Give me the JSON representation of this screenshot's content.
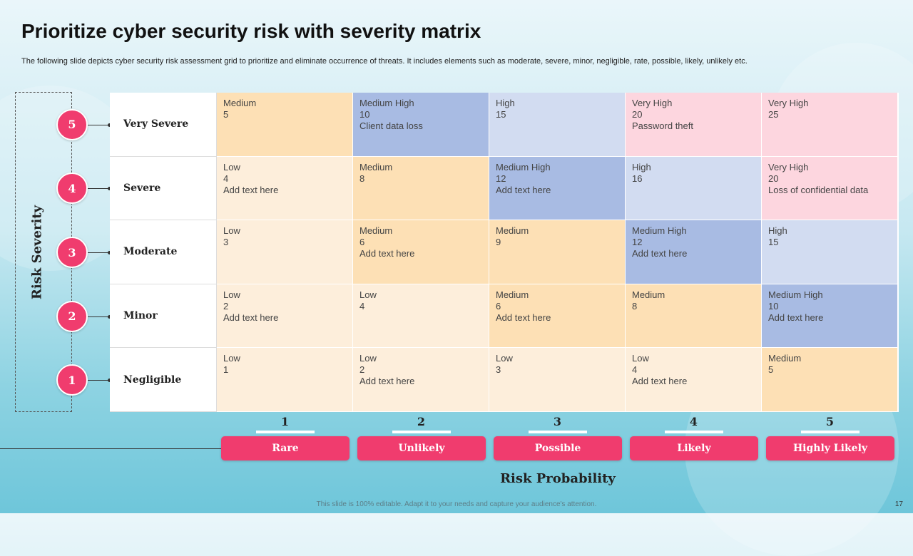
{
  "title": "Prioritize cyber security risk with severity matrix",
  "subtitle": "The following slide depicts cyber security risk assessment grid to prioritize and eliminate occurrence of threats. It includes elements such as moderate, severe, minor, negligible, rate, possible, likely, unlikely etc.",
  "severity_axis_label": "Risk Severity",
  "probability_axis_label": "Risk Probability",
  "footer_note": "This slide is 100% editable. Adapt it to your needs and capture your audience's attention.",
  "slide_number": "17",
  "colors": {
    "badge": "#f03c6e",
    "level_low": "#fdeedb",
    "level_medium": "#fde0b5",
    "level_medium_high": "#a8bbe3",
    "level_high": "#d2dcf1",
    "level_very_high": "#fdd6df"
  },
  "severity_levels": [
    {
      "number": "5",
      "label": "Very Severe"
    },
    {
      "number": "4",
      "label": "Severe"
    },
    {
      "number": "3",
      "label": "Moderate"
    },
    {
      "number": "2",
      "label": "Minor"
    },
    {
      "number": "1",
      "label": "Negligible"
    }
  ],
  "probability_levels": [
    {
      "number": "1",
      "label": "Rare"
    },
    {
      "number": "2",
      "label": "Unlikely"
    },
    {
      "number": "3",
      "label": "Possible"
    },
    {
      "number": "4",
      "label": "Likely"
    },
    {
      "number": "5",
      "label": "Highly Likely"
    }
  ],
  "matrix": [
    [
      {
        "level": "Medium",
        "score": "5",
        "note": ""
      },
      {
        "level": "Medium High",
        "score": "10",
        "note": "Client data loss"
      },
      {
        "level": "High",
        "score": "15",
        "note": ""
      },
      {
        "level": "Very High",
        "score": "20",
        "note": "Password theft"
      },
      {
        "level": "Very High",
        "score": "25",
        "note": ""
      }
    ],
    [
      {
        "level": "Low",
        "score": "4",
        "note": "Add text here"
      },
      {
        "level": "Medium",
        "score": "8",
        "note": ""
      },
      {
        "level": "Medium High",
        "score": "12",
        "note": "Add text here"
      },
      {
        "level": "High",
        "score": "16",
        "note": ""
      },
      {
        "level": "Very High",
        "score": "20",
        "note": "Loss of confidential data"
      }
    ],
    [
      {
        "level": "Low",
        "score": "3",
        "note": ""
      },
      {
        "level": "Medium",
        "score": "6",
        "note": "Add text here"
      },
      {
        "level": "Medium",
        "score": "9",
        "note": ""
      },
      {
        "level": "Medium High",
        "score": "12",
        "note": "Add text here"
      },
      {
        "level": "High",
        "score": "15",
        "note": ""
      }
    ],
    [
      {
        "level": "Low",
        "score": "2",
        "note": "Add text here"
      },
      {
        "level": "Low",
        "score": "4",
        "note": ""
      },
      {
        "level": "Medium",
        "score": "6",
        "note": "Add text here"
      },
      {
        "level": "Medium",
        "score": "8",
        "note": ""
      },
      {
        "level": "Medium High",
        "score": "10",
        "note": "Add text here"
      }
    ],
    [
      {
        "level": "Low",
        "score": "1",
        "note": ""
      },
      {
        "level": "Low",
        "score": "2",
        "note": "Add text here"
      },
      {
        "level": "Low",
        "score": "3",
        "note": ""
      },
      {
        "level": "Low",
        "score": "4",
        "note": "Add text here"
      },
      {
        "level": "Medium",
        "score": "5",
        "note": ""
      }
    ]
  ]
}
